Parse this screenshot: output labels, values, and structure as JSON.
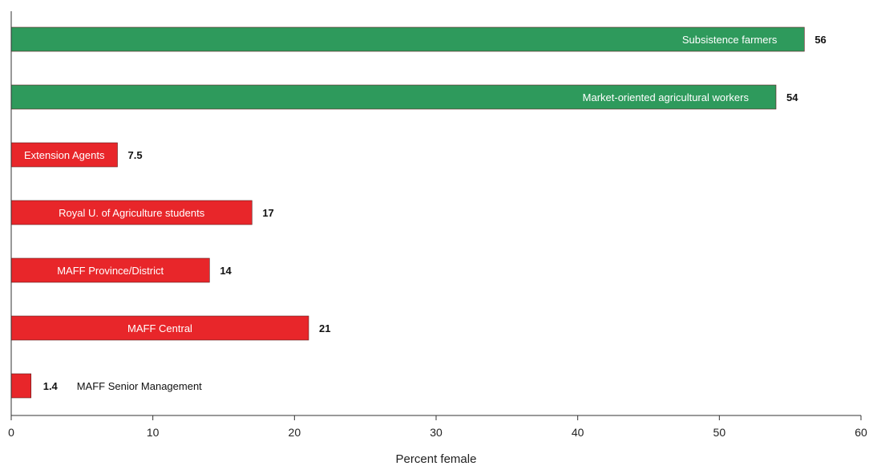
{
  "chart_data": {
    "type": "bar",
    "orientation": "horizontal",
    "xlabel": "Percent female",
    "ylabel": "",
    "xlim": [
      0,
      60
    ],
    "xticks": [
      "0",
      "10",
      "20",
      "30",
      "40",
      "50",
      "60"
    ],
    "grid": false,
    "bars": [
      {
        "label": "Subsistence farmers",
        "value": 56,
        "value_label": "56",
        "color": "#2e9a5c",
        "label_inside": true
      },
      {
        "label": "Market-oriented agricultural workers",
        "value": 54,
        "value_label": "54",
        "color": "#2e9a5c",
        "label_inside": true
      },
      {
        "label": "Extension Agents",
        "value": 7.5,
        "value_label": "7.5",
        "color": "#e8262a",
        "label_inside": true
      },
      {
        "label": "Royal U. of Agriculture students",
        "value": 17,
        "value_label": "17",
        "color": "#e8262a",
        "label_inside": true
      },
      {
        "label": "MAFF  Province/District",
        "value": 14,
        "value_label": "14",
        "color": "#e8262a",
        "label_inside": true
      },
      {
        "label": "MAFF  Central",
        "value": 21,
        "value_label": "21",
        "color": "#e8262a",
        "label_inside": true
      },
      {
        "label": "MAFF Senior Management",
        "value": 1.4,
        "value_label": "1.4",
        "color": "#e8262a",
        "label_inside": false
      }
    ]
  }
}
